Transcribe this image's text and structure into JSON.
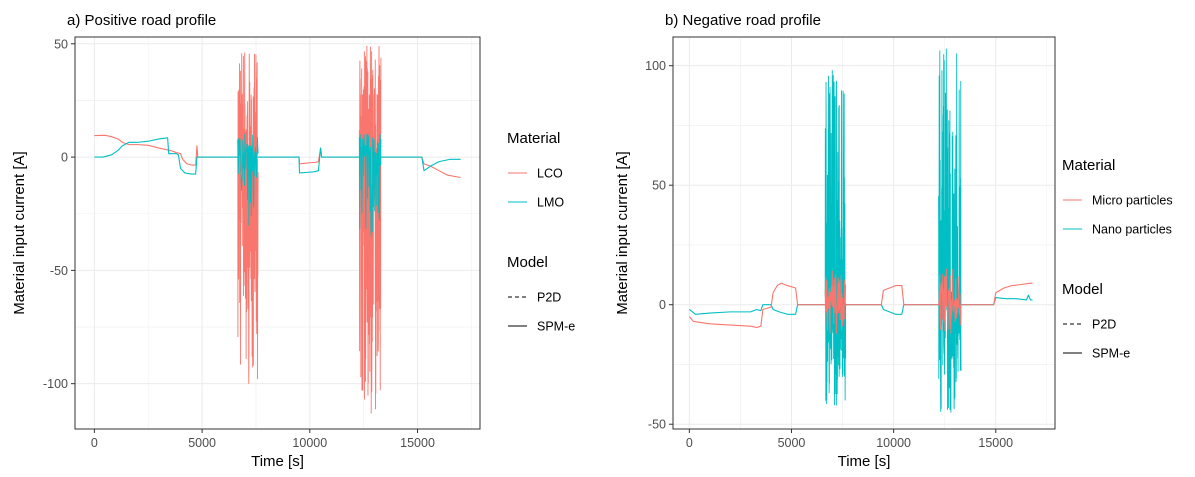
{
  "chart_data": [
    {
      "type": "line",
      "title": "a) Positive road profile",
      "xlabel": "Time [s]",
      "ylabel": "Material input current [A]",
      "xlim": [
        -900,
        17900
      ],
      "ylim": [
        -120,
        53
      ],
      "xticks": [
        0,
        5000,
        10000,
        15000
      ],
      "yticks": [
        50,
        0,
        -50,
        -100
      ],
      "grid": true,
      "legend": {
        "placement": "right",
        "color_title": "Material",
        "linetype_title": "Model",
        "linetype_entries": [
          {
            "label": "P2D",
            "dash": "dashed"
          },
          {
            "label": "SPM-e",
            "dash": "solid"
          }
        ]
      },
      "series": [
        {
          "name": "LCO",
          "color": "#F8766D",
          "segments": [
            {
              "type": "line",
              "points": [
                [
                  0,
                  9.5
                ],
                [
                  500,
                  9.6
                ],
                [
                  800,
                  9
                ],
                [
                  1100,
                  8
                ],
                [
                  1300,
                  6.5
                ],
                [
                  1600,
                  5.5
                ],
                [
                  2000,
                  5.5
                ],
                [
                  2500,
                  5.2
                ],
                [
                  3000,
                  4
                ],
                [
                  3500,
                  3
                ],
                [
                  3800,
                  2
                ],
                [
                  4000,
                  1.5
                ],
                [
                  4100,
                  -1
                ],
                [
                  4300,
                  -3
                ],
                [
                  4500,
                  -3.5
                ],
                [
                  4700,
                  -3.5
                ],
                [
                  4760,
                  5
                ],
                [
                  4800,
                  0
                ],
                [
                  6700,
                  0
                ]
              ]
            },
            {
              "type": "burst",
              "range": [
                6650,
                7600
              ],
              "min": -100,
              "max": 46,
              "count": 150,
              "seed": 11
            },
            {
              "type": "line",
              "points": [
                [
                  7600,
                  0
                ],
                [
                  9500,
                  0
                ],
                [
                  9520,
                  -3
                ],
                [
                  9700,
                  -2.8
                ],
                [
                  10000,
                  -2.5
                ],
                [
                  10300,
                  -2.3
                ],
                [
                  10400,
                  -2
                ],
                [
                  10500,
                  4
                ],
                [
                  10550,
                  0
                ],
                [
                  12300,
                  0
                ]
              ]
            },
            {
              "type": "burst",
              "range": [
                12300,
                13300
              ],
              "min": -113,
              "max": 49,
              "count": 160,
              "seed": 23
            },
            {
              "type": "line",
              "points": [
                [
                  13300,
                  0
                ],
                [
                  15200,
                  0
                ],
                [
                  15300,
                  -3
                ],
                [
                  15600,
                  -4
                ],
                [
                  16000,
                  -6
                ],
                [
                  16400,
                  -8
                ],
                [
                  17000,
                  -9
                ]
              ]
            }
          ]
        },
        {
          "name": "LMO",
          "color": "#00BFC4",
          "segments": [
            {
              "type": "line",
              "points": [
                [
                  0,
                  0
                ],
                [
                  400,
                  0
                ],
                [
                  800,
                  1
                ],
                [
                  1100,
                  3
                ],
                [
                  1300,
                  5
                ],
                [
                  1600,
                  6.5
                ],
                [
                  2000,
                  6.5
                ],
                [
                  2500,
                  7
                ],
                [
                  3000,
                  8
                ],
                [
                  3400,
                  8.5
                ],
                [
                  3450,
                  1.5
                ],
                [
                  3800,
                  1.5
                ],
                [
                  3900,
                  1
                ],
                [
                  4000,
                  -5
                ],
                [
                  4200,
                  -7
                ],
                [
                  4500,
                  -7.5
                ],
                [
                  4700,
                  -7.5
                ],
                [
                  4760,
                  0
                ],
                [
                  6700,
                  0
                ]
              ]
            },
            {
              "type": "burst",
              "range": [
                6650,
                7600
              ],
              "min": -30,
              "max": 10,
              "count": 60,
              "seed": 5
            },
            {
              "type": "line",
              "points": [
                [
                  7600,
                  0
                ],
                [
                  9500,
                  0
                ],
                [
                  9520,
                  -7
                ],
                [
                  9800,
                  -6.8
                ],
                [
                  10200,
                  -6.5
                ],
                [
                  10400,
                  -6
                ],
                [
                  10500,
                  4
                ],
                [
                  10550,
                  0
                ],
                [
                  12300,
                  0
                ]
              ]
            },
            {
              "type": "burst",
              "range": [
                12300,
                13300
              ],
              "min": -35,
              "max": 10,
              "count": 60,
              "seed": 7
            },
            {
              "type": "line",
              "points": [
                [
                  13300,
                  0
                ],
                [
                  15200,
                  0
                ],
                [
                  15300,
                  -6
                ],
                [
                  15600,
                  -4
                ],
                [
                  16000,
                  -2
                ],
                [
                  16500,
                  -1
                ],
                [
                  17000,
                  -1
                ]
              ]
            }
          ]
        }
      ],
      "legend_color_entries": [
        "LCO",
        "LMO"
      ]
    },
    {
      "type": "line",
      "title": "b) Negative road profile",
      "xlabel": "Time [s]",
      "ylabel": "Material input current [A]",
      "xlim": [
        -800,
        17900
      ],
      "ylim": [
        -52,
        112
      ],
      "xticks": [
        0,
        5000,
        10000,
        15000
      ],
      "yticks": [
        100,
        50,
        0,
        -50
      ],
      "grid": true,
      "legend": {
        "placement": "right",
        "color_title": "Material",
        "linetype_title": "Model",
        "linetype_entries": [
          {
            "label": "P2D",
            "dash": "dashed"
          },
          {
            "label": "SPM-e",
            "dash": "solid"
          }
        ]
      },
      "series": [
        {
          "name": "Nano particles",
          "color": "#00BFC4",
          "segments": [
            {
              "type": "line",
              "points": [
                [
                  0,
                  -2
                ],
                [
                  300,
                  -4
                ],
                [
                  1000,
                  -3.5
                ],
                [
                  2000,
                  -3
                ],
                [
                  3000,
                  -3
                ],
                [
                  3300,
                  -2
                ],
                [
                  3500,
                  -2.5
                ],
                [
                  3600,
                  0
                ],
                [
                  4000,
                  0
                ],
                [
                  4100,
                  -2
                ],
                [
                  4400,
                  -3
                ],
                [
                  4800,
                  -4
                ],
                [
                  5200,
                  -4
                ],
                [
                  5300,
                  0
                ],
                [
                  6700,
                  0
                ]
              ]
            },
            {
              "type": "burst",
              "range": [
                6650,
                7650
              ],
              "min": -42,
              "max": 98,
              "count": 170,
              "seed": 31
            },
            {
              "type": "line",
              "points": [
                [
                  7650,
                  0
                ],
                [
                  9400,
                  0
                ],
                [
                  9500,
                  -2
                ],
                [
                  9800,
                  -3
                ],
                [
                  10100,
                  -4
                ],
                [
                  10400,
                  -4
                ],
                [
                  10500,
                  0
                ],
                [
                  12200,
                  0
                ]
              ]
            },
            {
              "type": "burst",
              "range": [
                12200,
                13300
              ],
              "min": -45,
              "max": 107,
              "count": 180,
              "seed": 47
            },
            {
              "type": "line",
              "points": [
                [
                  13300,
                  0
                ],
                [
                  14900,
                  0
                ],
                [
                  15000,
                  3
                ],
                [
                  15500,
                  2.5
                ],
                [
                  16000,
                  2.5
                ],
                [
                  16500,
                  2
                ],
                [
                  16600,
                  4
                ],
                [
                  16700,
                  2
                ],
                [
                  16800,
                  2
                ]
              ]
            }
          ]
        },
        {
          "name": "Micro particles",
          "color": "#F8766D",
          "segments": [
            {
              "type": "line",
              "points": [
                [
                  0,
                  -5
                ],
                [
                  200,
                  -7
                ],
                [
                  1000,
                  -8
                ],
                [
                  2000,
                  -8.5
                ],
                [
                  3000,
                  -9
                ],
                [
                  3300,
                  -9.5
                ],
                [
                  3500,
                  -9
                ],
                [
                  3600,
                  -2
                ],
                [
                  4000,
                  -1
                ],
                [
                  4100,
                  5
                ],
                [
                  4300,
                  8
                ],
                [
                  4500,
                  9
                ],
                [
                  4800,
                  8
                ],
                [
                  5200,
                  7
                ],
                [
                  5300,
                  0
                ],
                [
                  6700,
                  0
                ]
              ]
            },
            {
              "type": "burst",
              "range": [
                6650,
                7650
              ],
              "min": -12,
              "max": 14,
              "count": 60,
              "seed": 3
            },
            {
              "type": "line",
              "points": [
                [
                  7650,
                  0
                ],
                [
                  9400,
                  0
                ],
                [
                  9500,
                  6
                ],
                [
                  9800,
                  7
                ],
                [
                  10100,
                  8
                ],
                [
                  10400,
                  8
                ],
                [
                  10500,
                  0
                ],
                [
                  12200,
                  0
                ]
              ]
            },
            {
              "type": "burst",
              "range": [
                12200,
                13300
              ],
              "min": -12,
              "max": 15,
              "count": 60,
              "seed": 9
            },
            {
              "type": "line",
              "points": [
                [
                  13300,
                  0
                ],
                [
                  14900,
                  0
                ],
                [
                  15000,
                  5
                ],
                [
                  15400,
                  7
                ],
                [
                  15800,
                  8
                ],
                [
                  16300,
                  8.5
                ],
                [
                  16700,
                  9
                ],
                [
                  16800,
                  9
                ]
              ]
            }
          ]
        }
      ],
      "legend_color_entries": [
        "Micro particles",
        "Nano particles"
      ]
    }
  ]
}
